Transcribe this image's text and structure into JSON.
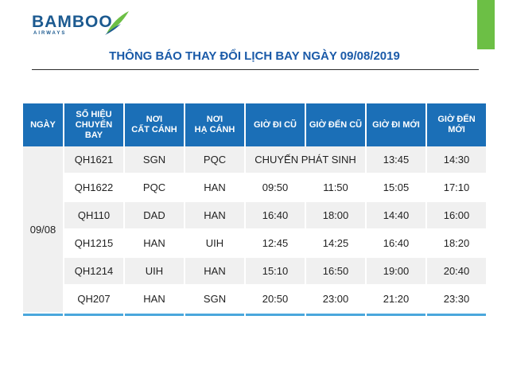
{
  "brand": {
    "name": "BAMBOO",
    "sub": "AIRWAYS"
  },
  "title": "THÔNG BÁO THAY ĐỔI LỊCH BAY NGÀY 09/08/2019",
  "headers": [
    {
      "l1": "NGÀY",
      "l2": ""
    },
    {
      "l1": "SỐ HIỆU",
      "l2": "CHUYẾN BAY"
    },
    {
      "l1": "NƠI",
      "l2": "CẤT CÁNH"
    },
    {
      "l1": "NƠI",
      "l2": "HẠ CÁNH"
    },
    {
      "l1": "GIỜ ĐI CŨ",
      "l2": ""
    },
    {
      "l1": "GIỜ ĐẾN CŨ",
      "l2": ""
    },
    {
      "l1": "GIỜ ĐI MỚI",
      "l2": ""
    },
    {
      "l1": "GIỜ ĐẾN MỚI",
      "l2": ""
    }
  ],
  "date": "09/08",
  "rows": [
    {
      "flight": "QH1621",
      "from": "SGN",
      "to": "PQC",
      "old_dep": "CHUYẾN PHÁT SINH",
      "old_arr": "",
      "new_dep": "13:45",
      "new_arr": "14:30"
    },
    {
      "flight": "QH1622",
      "from": "PQC",
      "to": "HAN",
      "old_dep": "09:50",
      "old_arr": "11:50",
      "new_dep": "15:05",
      "new_arr": "17:10"
    },
    {
      "flight": "QH110",
      "from": "DAD",
      "to": "HAN",
      "old_dep": "16:40",
      "old_arr": "18:00",
      "new_dep": "14:40",
      "new_arr": "16:00"
    },
    {
      "flight": "QH1215",
      "from": "HAN",
      "to": "UIH",
      "old_dep": "12:45",
      "old_arr": "14:25",
      "new_dep": "16:40",
      "new_arr": "18:20"
    },
    {
      "flight": "QH1214",
      "from": "UIH",
      "to": "HAN",
      "old_dep": "15:10",
      "old_arr": "16:50",
      "new_dep": "19:00",
      "new_arr": "20:40"
    },
    {
      "flight": "QH207",
      "from": "HAN",
      "to": "SGN",
      "old_dep": "20:50",
      "old_arr": "23:00",
      "new_dep": "21:20",
      "new_arr": "23:30"
    }
  ],
  "colors": {
    "header_bg": "#1b6fb7",
    "title": "#1a5aa8",
    "accent_green": "#6cbf45",
    "bottom_bar": "#4aa7dc"
  }
}
